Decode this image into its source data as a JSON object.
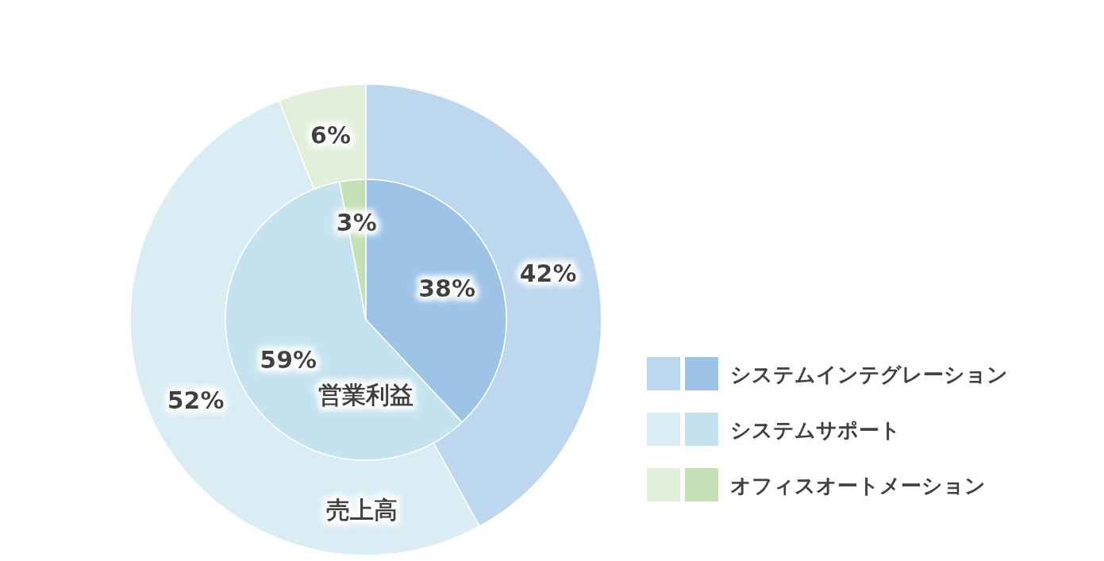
{
  "chart_data": {
    "type": "pie",
    "categories": [
      "システムインテグレーション",
      "システムサポート",
      "オフィスオートメーション"
    ],
    "legend": "right",
    "series": [
      {
        "name": "売上高",
        "values": [
          42,
          52,
          6
        ],
        "value_labels": [
          "42%",
          "52%",
          "6%"
        ],
        "colors": [
          "#bdd7ee",
          "#daedf4",
          "#e2efda"
        ]
      },
      {
        "name": "営業利益",
        "values": [
          38,
          59,
          3
        ],
        "value_labels": [
          "38%",
          "59%",
          "3%"
        ],
        "colors": [
          "#9dc3e6",
          "#c5e3ee",
          "#c5e0b4"
        ]
      }
    ]
  }
}
